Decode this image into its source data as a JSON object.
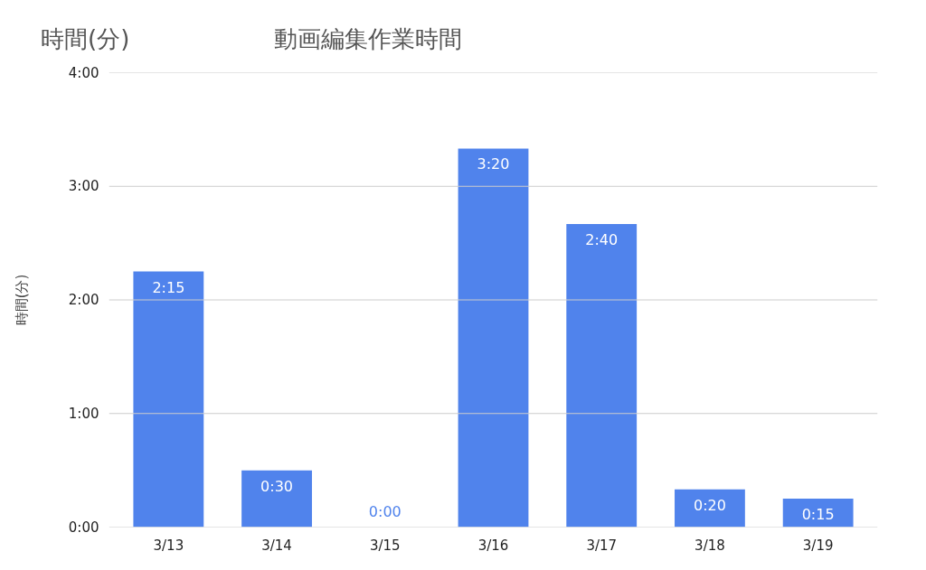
{
  "chart_data": {
    "type": "bar",
    "title": "動画編集作業時間",
    "ylabel": "時間(分)",
    "annotations": [
      "時間(分)"
    ],
    "categories": [
      "3/13",
      "3/14",
      "3/15",
      "3/16",
      "3/17",
      "3/18",
      "3/19"
    ],
    "values": [
      2.25,
      0.5,
      0,
      3.333,
      2.667,
      0.333,
      0.25
    ],
    "value_labels": [
      "2:15",
      "0:30",
      "0:00",
      "3:20",
      "2:40",
      "0:20",
      "0:15"
    ],
    "color": "#5083ec",
    "ylim": [
      0,
      4
    ],
    "yticks": [
      {
        "value": 0,
        "label": "0:00"
      },
      {
        "value": 1,
        "label": "1:00"
      },
      {
        "value": 2,
        "label": "2:00"
      },
      {
        "value": 3,
        "label": "3:00"
      },
      {
        "value": 4,
        "label": "4:00"
      }
    ],
    "grid": "y"
  }
}
